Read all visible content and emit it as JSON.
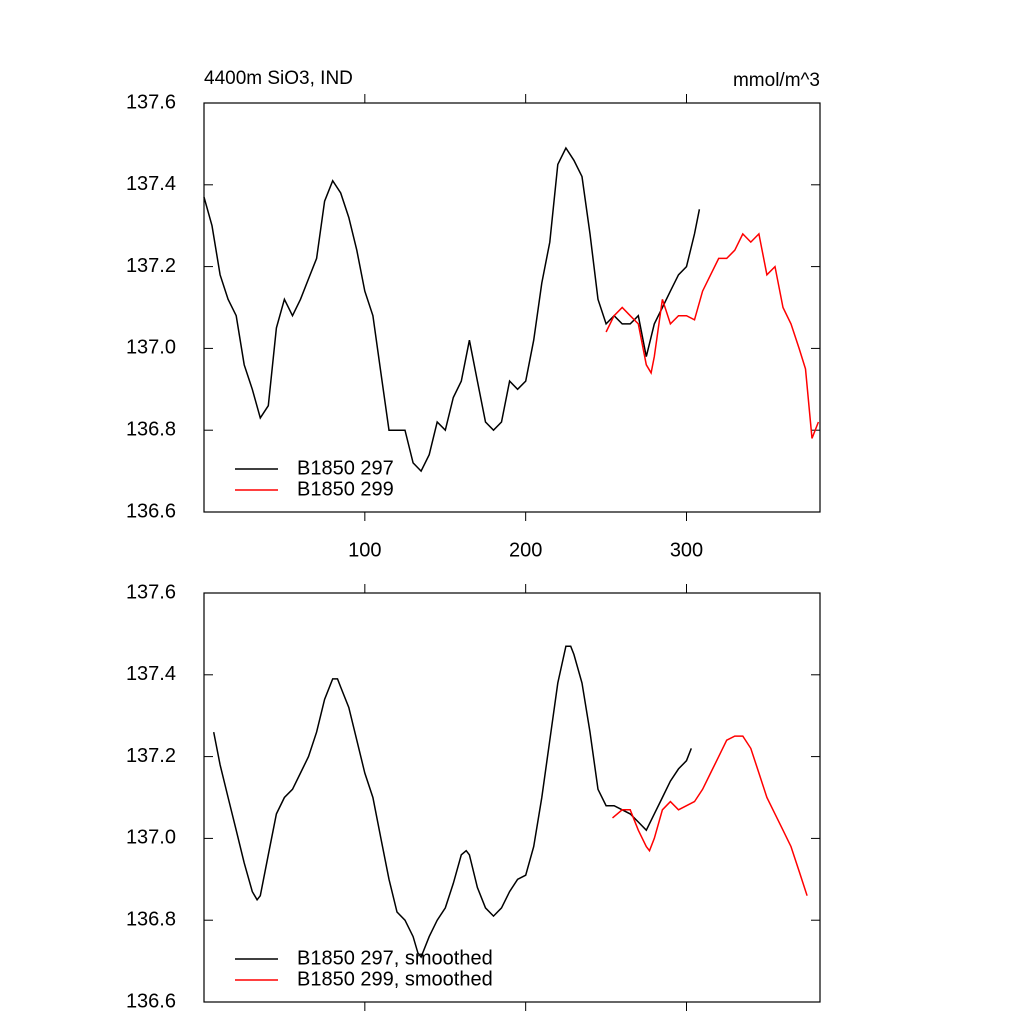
{
  "chart_data": [
    {
      "type": "line",
      "title": "4400m SiO3, IND",
      "units": "mmol/m^3",
      "xlim": [
        0,
        383
      ],
      "xticks": [
        100,
        200,
        300
      ],
      "xtick_labels": true,
      "ylim": [
        136.6,
        137.6
      ],
      "yticks": [
        136.6,
        136.8,
        {
          "value": 137.0,
          "label": "137.0"
        },
        137.2,
        137.4,
        137.6
      ],
      "legend": "lower left",
      "series": [
        {
          "name": "B1850 297",
          "color": "#000000",
          "x": [
            0,
            5,
            10,
            15,
            20,
            25,
            30,
            35,
            40,
            45,
            50,
            55,
            60,
            65,
            70,
            75,
            80,
            85,
            90,
            95,
            100,
            105,
            110,
            115,
            120,
            125,
            130,
            135,
            140,
            145,
            150,
            155,
            160,
            165,
            170,
            175,
            180,
            185,
            190,
            195,
            200,
            205,
            210,
            215,
            220,
            225,
            230,
            235,
            240,
            245,
            250,
            255,
            260,
            265,
            270,
            275,
            280,
            285,
            290,
            295,
            300,
            305,
            308
          ],
          "values": [
            137.37,
            137.3,
            137.18,
            137.12,
            137.08,
            136.96,
            136.9,
            136.83,
            136.86,
            137.05,
            137.12,
            137.08,
            137.12,
            137.17,
            137.22,
            137.36,
            137.41,
            137.38,
            137.32,
            137.24,
            137.14,
            137.08,
            136.94,
            136.8,
            136.8,
            136.8,
            136.72,
            136.7,
            136.74,
            136.82,
            136.8,
            136.88,
            136.92,
            137.02,
            136.92,
            136.82,
            136.8,
            136.82,
            136.92,
            136.9,
            136.92,
            137.02,
            137.16,
            137.26,
            137.45,
            137.49,
            137.46,
            137.42,
            137.28,
            137.12,
            137.06,
            137.08,
            137.06,
            137.06,
            137.08,
            136.98,
            137.06,
            137.1,
            137.14,
            137.18,
            137.2,
            137.28,
            137.34
          ]
        },
        {
          "name": "B1850 299",
          "color": "#ff0000",
          "x": [
            250,
            255,
            260,
            265,
            270,
            275,
            278,
            280,
            285,
            290,
            295,
            300,
            305,
            310,
            315,
            320,
            325,
            330,
            335,
            340,
            345,
            350,
            355,
            360,
            365,
            370,
            374,
            378,
            382
          ],
          "values": [
            137.04,
            137.08,
            137.1,
            137.08,
            137.06,
            136.96,
            136.94,
            136.98,
            137.12,
            137.06,
            137.08,
            137.08,
            137.07,
            137.14,
            137.18,
            137.22,
            137.22,
            137.24,
            137.28,
            137.26,
            137.28,
            137.18,
            137.2,
            137.1,
            137.06,
            137.0,
            136.95,
            136.78,
            136.82
          ]
        }
      ]
    },
    {
      "type": "line",
      "xlim": [
        0,
        383
      ],
      "xticks": [
        100,
        200,
        300
      ],
      "xtick_labels": false,
      "ylim": [
        136.6,
        137.6
      ],
      "yticks": [
        136.6,
        136.8,
        {
          "value": 137.0,
          "label": "137.0"
        },
        137.2,
        137.4,
        137.6
      ],
      "legend": "lower left",
      "series": [
        {
          "name": "B1850 297, smoothed",
          "color": "#000000",
          "x": [
            6,
            10,
            15,
            20,
            25,
            30,
            33,
            35,
            40,
            45,
            50,
            55,
            60,
            65,
            70,
            75,
            80,
            83,
            85,
            90,
            95,
            100,
            105,
            110,
            115,
            120,
            125,
            130,
            133,
            135,
            140,
            145,
            150,
            155,
            160,
            163,
            165,
            170,
            175,
            180,
            185,
            190,
            195,
            200,
            205,
            210,
            215,
            220,
            225,
            228,
            230,
            235,
            240,
            245,
            250,
            255,
            260,
            265,
            270,
            275,
            280,
            285,
            290,
            295,
            300,
            303
          ],
          "values": [
            137.26,
            137.18,
            137.1,
            137.02,
            136.94,
            136.87,
            136.85,
            136.86,
            136.96,
            137.06,
            137.1,
            137.12,
            137.16,
            137.2,
            137.26,
            137.34,
            137.39,
            137.39,
            137.37,
            137.32,
            137.24,
            137.16,
            137.1,
            137.0,
            136.9,
            136.82,
            136.8,
            136.76,
            136.72,
            136.71,
            136.76,
            136.8,
            136.83,
            136.89,
            136.96,
            136.97,
            136.96,
            136.88,
            136.83,
            136.81,
            136.83,
            136.87,
            136.9,
            136.91,
            136.98,
            137.1,
            137.24,
            137.38,
            137.47,
            137.47,
            137.45,
            137.38,
            137.26,
            137.12,
            137.08,
            137.08,
            137.07,
            137.06,
            137.04,
            137.02,
            137.06,
            137.1,
            137.14,
            137.17,
            137.19,
            137.22
          ]
        },
        {
          "name": "B1850 299, smoothed",
          "color": "#ff0000",
          "x": [
            254,
            260,
            265,
            270,
            275,
            277,
            280,
            285,
            290,
            295,
            300,
            305,
            310,
            315,
            320,
            325,
            330,
            335,
            340,
            345,
            350,
            355,
            360,
            365,
            370,
            375
          ],
          "values": [
            137.05,
            137.07,
            137.07,
            137.02,
            136.98,
            136.97,
            137.0,
            137.07,
            137.09,
            137.07,
            137.08,
            137.09,
            137.12,
            137.16,
            137.2,
            137.24,
            137.25,
            137.25,
            137.22,
            137.16,
            137.1,
            137.06,
            137.02,
            136.98,
            136.92,
            136.86
          ]
        }
      ]
    }
  ]
}
